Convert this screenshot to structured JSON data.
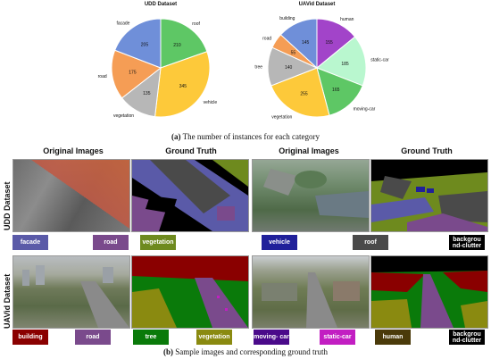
{
  "chart_data": [
    {
      "type": "pie",
      "title": "UDD Dataset",
      "slices": [
        {
          "label": "roof",
          "value": 210,
          "color": "#5ec765"
        },
        {
          "label": "vehicle",
          "value": 345,
          "color": "#fdc93a"
        },
        {
          "label": "vegetation",
          "value": 135,
          "color": "#b7b7b7"
        },
        {
          "label": "road",
          "value": 175,
          "color": "#f59d55"
        },
        {
          "label": "facade",
          "value": 205,
          "color": "#6f8fd9"
        }
      ]
    },
    {
      "type": "pie",
      "title": "UAVid Dataset",
      "slices": [
        {
          "label": "human",
          "value": 155,
          "color": "#a244c9"
        },
        {
          "label": "static-car",
          "value": 185,
          "color": "#b9f7cf"
        },
        {
          "label": "moving-car",
          "value": 165,
          "color": "#5ec765"
        },
        {
          "label": "vegetation",
          "value": 255,
          "color": "#fdc93a"
        },
        {
          "label": "tree",
          "value": 140,
          "color": "#b7b7b7"
        },
        {
          "label": "road",
          "value": 55,
          "color": "#f59d55"
        },
        {
          "label": "building",
          "value": 145,
          "color": "#6f8fd9"
        }
      ]
    }
  ],
  "caption_a": {
    "tag": "(a)",
    "text": "The number of instances for each category"
  },
  "caption_b": {
    "tag": "(b)",
    "text": "Sample images and corresponding ground truth"
  },
  "columns": [
    "Original Images",
    "Ground Truth",
    "Original Images",
    "Ground Truth"
  ],
  "rows": [
    "UDD Dataset",
    "UAVid Dataset"
  ],
  "udd_labels": [
    {
      "text": "facade",
      "color": "#5a5aa8"
    },
    {
      "text": "road",
      "color": "#7a4a8c"
    },
    {
      "text": "vegetation",
      "color": "#6e8a1e"
    },
    {
      "text": "vehicle",
      "color": "#20209a"
    },
    {
      "text": "roof",
      "color": "#4a4a4a"
    },
    {
      "text": "backgrou nd-clutter",
      "color": "#000000"
    }
  ],
  "uavid_labels": [
    {
      "text": "building",
      "color": "#8a0000"
    },
    {
      "text": "road",
      "color": "#7a4a8c"
    },
    {
      "text": "tree",
      "color": "#0a7a0a"
    },
    {
      "text": "vegetation",
      "color": "#8a8a10"
    },
    {
      "text": "moving- car",
      "color": "#4a0a8a"
    },
    {
      "text": "static-car",
      "color": "#c21ec2"
    },
    {
      "text": "human",
      "color": "#4a3a0a"
    },
    {
      "text": "backgrou nd-clutter",
      "color": "#000000"
    }
  ],
  "colors": {
    "udd_veg": "#6e8a1e",
    "udd_building": "#4a4a4a",
    "udd_road": "#7a4a8c",
    "udd_vehicle": "#20209a",
    "udd_bg": "#000000",
    "udd_facade": "#5a5aa8",
    "uav_building": "#8a0000",
    "uav_road": "#7a4a8c",
    "uav_tree": "#0a7a0a",
    "uav_veg": "#8a8a10",
    "uav_bg": "#000000",
    "uav_car": "#c21ec2"
  }
}
